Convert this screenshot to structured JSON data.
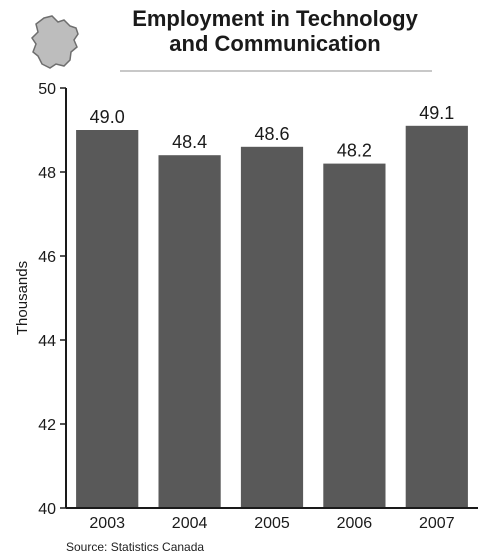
{
  "colors": {
    "bar": "#595959",
    "axis": "#1a1a1a",
    "title_rule": "#c8c8c8",
    "logo_fill": "#bdbdbd",
    "logo_stroke": "#6e6e6e"
  },
  "logo": {
    "icon": "province-map-icon"
  },
  "source": "Source: Statistics Canada",
  "chart_data": {
    "type": "bar",
    "title": "Employment in Technology and Communication",
    "title_lines": [
      "Employment in Technology",
      "and Communication"
    ],
    "xlabel": "",
    "ylabel": "Thousands",
    "categories": [
      "2003",
      "2004",
      "2005",
      "2006",
      "2007"
    ],
    "values": [
      49.0,
      48.4,
      48.6,
      48.2,
      49.1
    ],
    "value_labels": [
      "49.0",
      "48.4",
      "48.6",
      "48.2",
      "49.1"
    ],
    "ylim": [
      40,
      50
    ],
    "yticks": [
      40,
      42,
      44,
      46,
      48,
      50
    ],
    "grid": false,
    "legend": "none"
  }
}
